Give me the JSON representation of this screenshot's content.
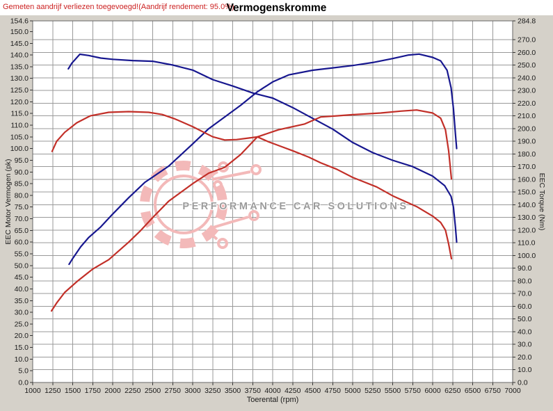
{
  "window": {
    "note": "Gemeten aandrijf verliezen toegevoegd!(Aandrijf rendement: 95.0%)",
    "title": "Vermogenskromme"
  },
  "watermark": {
    "text": "PERFORMANCE CAR SOLUTIONS"
  },
  "colors": {
    "background": "#d5d1c9",
    "plot_background": "#ffffff",
    "grid": "#999999",
    "plot_border": "#666666",
    "tick_text": "#1a1a1a",
    "note_red": "#cc2222",
    "curve_blue": "#17178f",
    "curve_red": "#c22f28",
    "watermark_pink": "#f3b9b9",
    "watermark_text_gray": "#9b9b9b"
  },
  "chart_data": {
    "type": "line",
    "title": "Vermogenskromme",
    "x_axis": {
      "label": "Toerental (rpm)",
      "min": 1000,
      "max": 7000,
      "tick_step": 250,
      "ticks": [
        1000,
        1250,
        1500,
        1750,
        2000,
        2250,
        2500,
        2750,
        3000,
        3250,
        3500,
        3750,
        4000,
        4250,
        4500,
        4750,
        5000,
        5250,
        5500,
        5750,
        6000,
        6250,
        6500,
        6750,
        7000
      ]
    },
    "y_left": {
      "label": "EEC Motor Vermogen (pk)",
      "min": 0,
      "max": 154.6,
      "ticks": [
        154.6,
        150,
        145,
        140,
        135,
        130,
        125,
        120,
        115,
        110,
        105,
        100,
        95,
        90,
        85,
        80,
        75,
        70,
        65,
        60,
        55,
        50,
        45,
        40,
        35,
        30,
        25,
        20,
        15,
        10,
        5,
        0
      ]
    },
    "y_right": {
      "label": "EEC Torque (Nm)",
      "min": 0,
      "max": 284.8,
      "ticks": [
        284.8,
        270,
        260,
        250,
        240,
        230,
        220,
        210,
        200,
        190,
        180,
        170,
        160,
        150,
        140,
        130,
        120,
        110,
        100,
        90,
        80,
        70,
        60,
        50,
        40,
        30,
        20,
        10,
        0
      ]
    },
    "grid": {
      "vertical_every_rpm": 250,
      "horizontal_every_nm": 10,
      "grid_on": true
    },
    "legend": "none",
    "series": [
      {
        "name": "power-curve-blue",
        "axis": "pk",
        "color": "#17178f",
        "unit": "pk",
        "points": [
          [
            1455,
            50.5
          ],
          [
            1500,
            53
          ],
          [
            1600,
            58
          ],
          [
            1700,
            62
          ],
          [
            1850,
            66.5
          ],
          [
            2000,
            72
          ],
          [
            2200,
            79
          ],
          [
            2400,
            85.5
          ],
          [
            2700,
            92.5
          ],
          [
            3000,
            102
          ],
          [
            3200,
            108.5
          ],
          [
            3400,
            113.5
          ],
          [
            3600,
            118.5
          ],
          [
            3810,
            124.3
          ],
          [
            4000,
            128.5
          ],
          [
            4200,
            131.5
          ],
          [
            4500,
            133.5
          ],
          [
            4750,
            134.5
          ],
          [
            5000,
            135.5
          ],
          [
            5250,
            136.8
          ],
          [
            5500,
            138.5
          ],
          [
            5700,
            140
          ],
          [
            5830,
            140.4
          ],
          [
            6000,
            139
          ],
          [
            6100,
            137.5
          ],
          [
            6180,
            133.5
          ],
          [
            6230,
            126
          ],
          [
            6260,
            117
          ],
          [
            6285,
            106
          ],
          [
            6300,
            100
          ]
        ]
      },
      {
        "name": "torque-curve-blue",
        "axis": "nm",
        "color": "#17178f",
        "unit": "Nm",
        "points": [
          [
            1445,
            247
          ],
          [
            1490,
            251.5
          ],
          [
            1590,
            258.5
          ],
          [
            1700,
            257.5
          ],
          [
            1850,
            255.5
          ],
          [
            2000,
            254.5
          ],
          [
            2250,
            253.5
          ],
          [
            2500,
            253
          ],
          [
            2750,
            250
          ],
          [
            3000,
            246
          ],
          [
            3250,
            238.5
          ],
          [
            3500,
            233.5
          ],
          [
            3750,
            228
          ],
          [
            4000,
            224
          ],
          [
            4250,
            216.5
          ],
          [
            4500,
            208
          ],
          [
            4750,
            199.5
          ],
          [
            5000,
            189
          ],
          [
            5250,
            181
          ],
          [
            5500,
            175
          ],
          [
            5750,
            170
          ],
          [
            6000,
            162.5
          ],
          [
            6150,
            155
          ],
          [
            6230,
            146.5
          ],
          [
            6260,
            138
          ],
          [
            6285,
            122
          ],
          [
            6300,
            110.5
          ]
        ]
      },
      {
        "name": "power-curve-red",
        "axis": "pk",
        "color": "#c22f28",
        "unit": "pk",
        "points": [
          [
            1235,
            30.6
          ],
          [
            1300,
            34
          ],
          [
            1400,
            38.5
          ],
          [
            1565,
            43.5
          ],
          [
            1750,
            48.5
          ],
          [
            1950,
            52.5
          ],
          [
            2200,
            60
          ],
          [
            2350,
            65
          ],
          [
            2500,
            70.5
          ],
          [
            2700,
            77.5
          ],
          [
            3000,
            85
          ],
          [
            3200,
            89.5
          ],
          [
            3400,
            92
          ],
          [
            3600,
            97.5
          ],
          [
            3810,
            105
          ],
          [
            4070,
            108
          ],
          [
            4400,
            110.5
          ],
          [
            4600,
            113.5
          ],
          [
            4800,
            114
          ],
          [
            5000,
            114.5
          ],
          [
            5350,
            115.2
          ],
          [
            5600,
            116
          ],
          [
            5800,
            116.5
          ],
          [
            6000,
            115.2
          ],
          [
            6100,
            113
          ],
          [
            6160,
            108
          ],
          [
            6200,
            99
          ],
          [
            6235,
            87
          ]
        ]
      },
      {
        "name": "torque-curve-red",
        "axis": "nm",
        "color": "#c22f28",
        "unit": "Nm",
        "points": [
          [
            1243,
            182
          ],
          [
            1300,
            190
          ],
          [
            1400,
            197
          ],
          [
            1550,
            204.5
          ],
          [
            1720,
            210
          ],
          [
            1950,
            212.8
          ],
          [
            2200,
            213.3
          ],
          [
            2450,
            212.8
          ],
          [
            2620,
            211
          ],
          [
            2780,
            207.5
          ],
          [
            3000,
            201.5
          ],
          [
            3250,
            193.5
          ],
          [
            3400,
            191
          ],
          [
            3550,
            191.3
          ],
          [
            3700,
            192.5
          ],
          [
            3810,
            193.4
          ],
          [
            3950,
            189.5
          ],
          [
            4100,
            186
          ],
          [
            4250,
            182.5
          ],
          [
            4450,
            177.5
          ],
          [
            4600,
            173
          ],
          [
            4800,
            168
          ],
          [
            5000,
            161.5
          ],
          [
            5300,
            154
          ],
          [
            5500,
            147
          ],
          [
            5800,
            138.5
          ],
          [
            6000,
            131
          ],
          [
            6100,
            126
          ],
          [
            6160,
            120
          ],
          [
            6200,
            109
          ],
          [
            6235,
            97.5
          ]
        ]
      }
    ]
  }
}
